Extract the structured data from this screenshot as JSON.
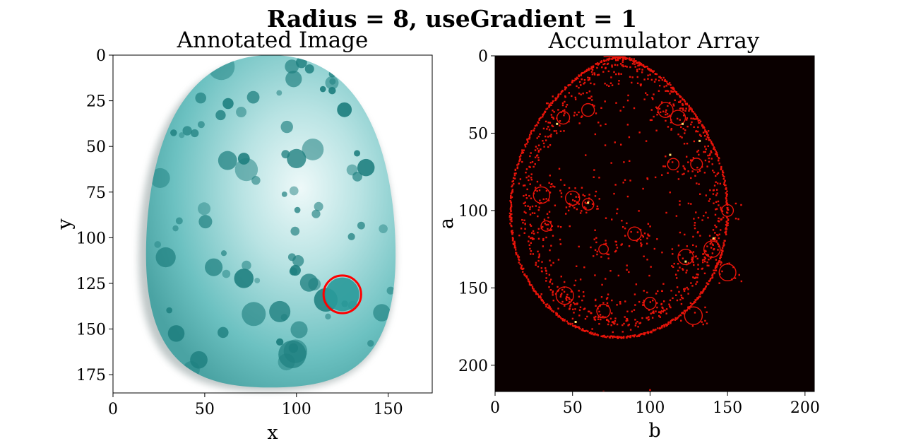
{
  "figure": {
    "suptitle": "Radius = 8, useGradient = 1"
  },
  "chart_data": [
    {
      "type": "image",
      "title": "Annotated Image",
      "xlabel": "x",
      "ylabel": "y",
      "xlim": [
        0,
        174
      ],
      "ylim": [
        185,
        0
      ],
      "xticks": [
        "0",
        "50",
        "100",
        "150"
      ],
      "yticks": [
        "0",
        "25",
        "50",
        "75",
        "100",
        "125",
        "150",
        "175"
      ],
      "image_description_colors": {
        "egg": "#4fb3b3",
        "spot": "#1e7f7f",
        "highlight": "#e9f7f7"
      },
      "annotations": [
        {
          "shape": "circle",
          "center_x": 125,
          "center_y": 131,
          "radius": 8,
          "color": "#ff0000"
        }
      ]
    },
    {
      "type": "heatmap",
      "title": "Accumulator Array",
      "xlabel": "b",
      "ylabel": "a",
      "xlim": [
        0,
        206
      ],
      "ylim": [
        217,
        0
      ],
      "xticks": [
        "0",
        "50",
        "100",
        "150",
        "200"
      ],
      "yticks": [
        "0",
        "50",
        "100",
        "150",
        "200"
      ],
      "colormap": "hot",
      "colors": {
        "background": "#0a0000",
        "edge": "#e8140a",
        "peak": "#ffe070"
      }
    }
  ]
}
